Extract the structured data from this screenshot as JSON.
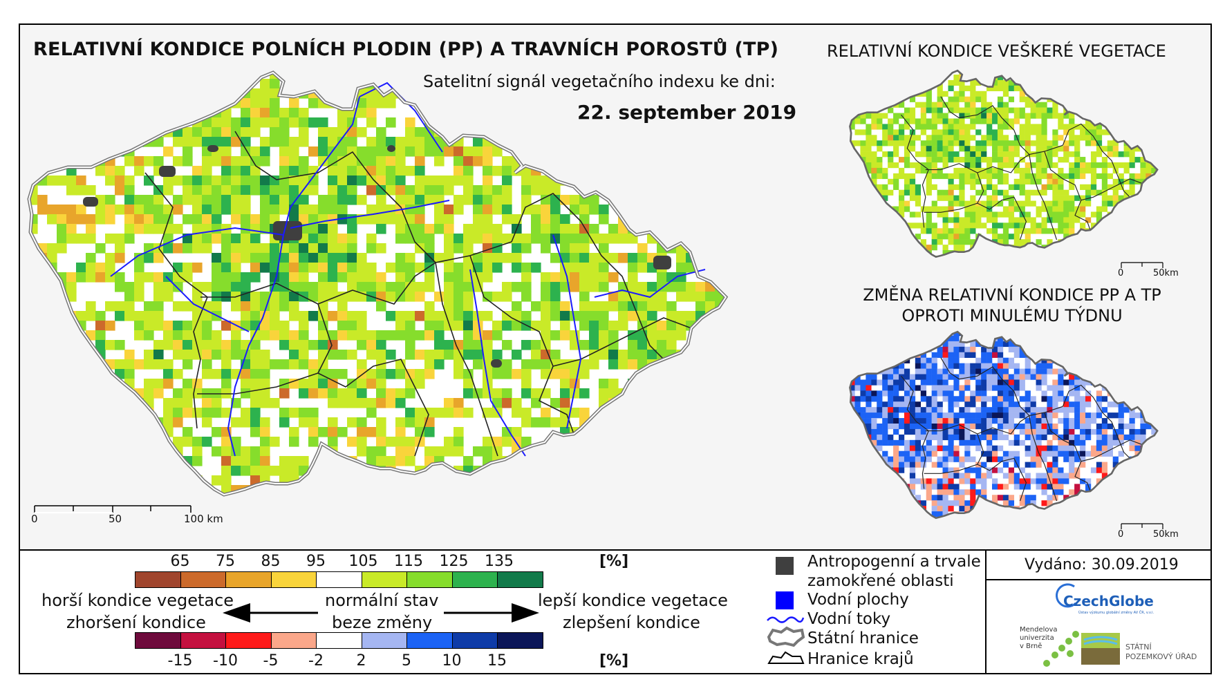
{
  "main_map": {
    "title": "RELATIVNÍ KONDICE POLNÍCH PLODIN (PP) A TRAVNÍCH POROSTŮ (TP)",
    "subtitle": "Satelitní signál vegetačního indexu ke dni:",
    "date": "22. september 2019",
    "scale": [
      "0",
      "50",
      "100 km"
    ]
  },
  "inset_vegetation": {
    "title": "RELATIVNÍ KONDICE VEŠKERÉ VEGETACE",
    "scale": [
      "0",
      "50km"
    ]
  },
  "inset_change": {
    "title_line1": "ZMĚNA RELATIVNÍ KONDICE PP A TP",
    "title_line2": "OPROTI MINULÉMU TÝDNU",
    "scale": [
      "0",
      "50km"
    ]
  },
  "legend_condition": {
    "ticks": [
      "65",
      "75",
      "85",
      "95",
      "105",
      "115",
      "125",
      "135"
    ],
    "unit": "[%]",
    "colors": [
      "#a0452d",
      "#cc6a2b",
      "#e8a52b",
      "#f9d43b",
      "#ffffff",
      "#c9ea28",
      "#86dd2c",
      "#2db24e",
      "#127a4a"
    ]
  },
  "legend_change": {
    "ticks": [
      "-15",
      "-10",
      "-5",
      "-2",
      "2",
      "5",
      "10",
      "15"
    ],
    "unit": "[%]",
    "colors": [
      "#6e0a3c",
      "#c4103f",
      "#ff1a1a",
      "#fba78a",
      "#ffffff",
      "#a5b6f2",
      "#1c63f5",
      "#0e3ba8",
      "#0b1659"
    ]
  },
  "legend_text": {
    "worse_1": "horší kondice vegetace",
    "worse_2": "zhoršení kondice",
    "normal_1": "normální stav",
    "normal_2": "beze změny",
    "better_1": "lepší kondice vegetace",
    "better_2": "zlepšení kondice"
  },
  "symbols": {
    "anthropogenic_1": "Antropogenní a trvale",
    "anthropogenic_2": "zamokřené oblasti",
    "water_bodies": "Vodní plochy",
    "water_streams": "Vodní toky",
    "state_border": "Státní hranice",
    "region_border": "Hranice krajů",
    "colors": {
      "anthropogenic": "#3f3f3f",
      "water": "#0000ff",
      "stream": "#1a1aff"
    }
  },
  "issued": "Vydáno: 30.09.2019",
  "logos": {
    "czechglobe": "CzechGlobe",
    "czechglobe_sub": "Ústav výzkumu globální změny AV ČR, v.v.i.",
    "mendel_1": "Mendelova",
    "mendel_2": "univerzita",
    "mendel_3": "v Brně",
    "spu_1": "STÁTNÍ",
    "spu_2": "POZEMKOVÝ ÚŘAD"
  }
}
